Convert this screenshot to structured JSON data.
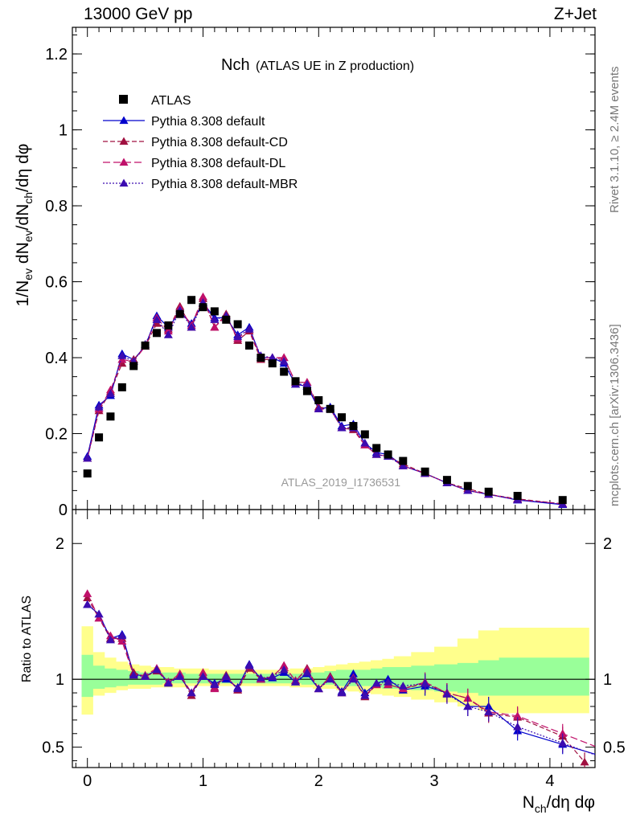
{
  "header": {
    "left": "13000 GeV pp",
    "right": "Z+Jet"
  },
  "side": {
    "rivet": "Rivet 3.1.10, ≥ 2.4M events",
    "mcplots": "mcplots.cern.ch [arXiv:1306.3436]"
  },
  "chart_data": [
    {
      "type": "scatter",
      "title": "Nch",
      "subtitle": "(ATLAS UE in Z production)",
      "watermark": "ATLAS_2019_I1736531",
      "ylabel": "1/N_ev dN_ev/dN_ch/dη dφ",
      "xlabel": "N_ch/dη dφ",
      "xlim": [
        -0.13,
        4.39
      ],
      "ylim": [
        0,
        1.27
      ],
      "yticks": [
        0,
        0.2,
        0.4,
        0.6,
        0.8,
        1,
        1.2
      ],
      "ytick_labels": [
        "0",
        "0.2",
        "0.4",
        "0.6",
        "0.8",
        "1",
        "1.2"
      ],
      "legend": [
        "ATLAS",
        "Pythia 8.308 default",
        "Pythia 8.308 default-CD",
        "Pythia 8.308 default-DL",
        "Pythia 8.308 default-MBR"
      ],
      "legend_position": "top-left",
      "colors": {
        "ATLAS": "#000000",
        "default": "#0000cc",
        "cd": "#a01040",
        "dl": "#c0106a",
        "mbr": "#3c0cb0"
      },
      "x": [
        0.0,
        0.1,
        0.2,
        0.3,
        0.4,
        0.5,
        0.6,
        0.7,
        0.8,
        0.9,
        1.0,
        1.1,
        1.2,
        1.3,
        1.4,
        1.5,
        1.6,
        1.7,
        1.8,
        1.9,
        2.0,
        2.1,
        2.2,
        2.3,
        2.4,
        2.5,
        2.6,
        2.73,
        2.92,
        3.11,
        3.29,
        3.47,
        3.72,
        4.11
      ],
      "series": [
        {
          "name": "ATLAS",
          "values": [
            0.095,
            0.19,
            0.245,
            0.322,
            0.378,
            0.432,
            0.465,
            0.485,
            0.515,
            0.552,
            0.533,
            0.522,
            0.5,
            0.488,
            0.432,
            0.4,
            0.385,
            0.363,
            0.338,
            0.312,
            0.288,
            0.265,
            0.243,
            0.22,
            0.198,
            0.162,
            0.145,
            0.128,
            0.1,
            0.078,
            0.062,
            0.047,
            0.036,
            0.025
          ]
        },
        {
          "name": "Pythia 8.308 default",
          "values": [
            0.14,
            0.275,
            0.3,
            0.41,
            0.395,
            0.43,
            0.51,
            0.48,
            0.52,
            0.49,
            0.545,
            0.505,
            0.505,
            0.46,
            0.48,
            0.4,
            0.4,
            0.385,
            0.33,
            0.325,
            0.265,
            0.27,
            0.22,
            0.225,
            0.175,
            0.15,
            0.145,
            0.115,
            0.095,
            0.07,
            0.05,
            0.04,
            0.025,
            0.013
          ]
        },
        {
          "name": "Pythia 8.308 default-CD",
          "values": [
            0.135,
            0.26,
            0.31,
            0.385,
            0.395,
            0.43,
            0.49,
            0.475,
            0.535,
            0.48,
            0.555,
            0.48,
            0.515,
            0.445,
            0.47,
            0.395,
            0.395,
            0.4,
            0.335,
            0.335,
            0.27,
            0.265,
            0.215,
            0.21,
            0.17,
            0.145,
            0.14,
            0.12,
            0.095,
            0.07,
            0.055,
            0.04,
            0.028,
            0.015
          ]
        },
        {
          "name": "Pythia 8.308 default-DL",
          "values": [
            0.135,
            0.265,
            0.315,
            0.395,
            0.39,
            0.43,
            0.505,
            0.47,
            0.53,
            0.485,
            0.56,
            0.48,
            0.51,
            0.45,
            0.475,
            0.4,
            0.4,
            0.4,
            0.335,
            0.335,
            0.265,
            0.265,
            0.215,
            0.215,
            0.17,
            0.145,
            0.14,
            0.115,
            0.095,
            0.07,
            0.05,
            0.04,
            0.026,
            0.015
          ]
        },
        {
          "name": "Pythia 8.308 default-MBR",
          "values": [
            0.135,
            0.27,
            0.305,
            0.405,
            0.39,
            0.435,
            0.5,
            0.46,
            0.525,
            0.48,
            0.545,
            0.5,
            0.51,
            0.455,
            0.475,
            0.405,
            0.4,
            0.39,
            0.33,
            0.33,
            0.265,
            0.265,
            0.215,
            0.215,
            0.175,
            0.145,
            0.14,
            0.115,
            0.095,
            0.07,
            0.05,
            0.04,
            0.026,
            0.014
          ]
        }
      ]
    },
    {
      "type": "line",
      "ylabel": "Ratio to ATLAS",
      "xlabel": "N_ch/dη dφ",
      "xlim": [
        -0.13,
        4.39
      ],
      "ylim": [
        0.35,
        2.25
      ],
      "yticks": [
        0.5,
        1,
        2
      ],
      "ytick_labels": [
        "0.5",
        "1",
        "2"
      ],
      "xticks": [
        0,
        1,
        2,
        3,
        4
      ],
      "xtick_labels": [
        "0",
        "1",
        "2",
        "3",
        "4"
      ],
      "reference_line": 1,
      "band_edges": [
        -0.05,
        0.05,
        0.15,
        0.25,
        0.35,
        0.45,
        0.55,
        0.65,
        0.75,
        0.85,
        0.95,
        1.05,
        1.15,
        1.25,
        1.35,
        1.45,
        1.55,
        1.65,
        1.75,
        1.85,
        1.95,
        2.05,
        2.15,
        2.25,
        2.35,
        2.45,
        2.55,
        2.65,
        2.8,
        3.0,
        3.2,
        3.38,
        3.56,
        3.88,
        4.34
      ],
      "band_inner": [
        [
          0.87,
          1.18
        ],
        [
          0.93,
          1.1
        ],
        [
          0.94,
          1.08
        ],
        [
          0.95,
          1.07
        ],
        [
          0.96,
          1.06
        ],
        [
          0.96,
          1.05
        ],
        [
          0.96,
          1.05
        ],
        [
          0.97,
          1.05
        ],
        [
          0.97,
          1.05
        ],
        [
          0.97,
          1.04
        ],
        [
          0.97,
          1.04
        ],
        [
          0.97,
          1.04
        ],
        [
          0.97,
          1.04
        ],
        [
          0.97,
          1.04
        ],
        [
          0.97,
          1.04
        ],
        [
          0.97,
          1.04
        ],
        [
          0.97,
          1.04
        ],
        [
          0.97,
          1.04
        ],
        [
          0.97,
          1.04
        ],
        [
          0.96,
          1.05
        ],
        [
          0.96,
          1.05
        ],
        [
          0.96,
          1.06
        ],
        [
          0.95,
          1.07
        ],
        [
          0.95,
          1.07
        ],
        [
          0.95,
          1.07
        ],
        [
          0.94,
          1.08
        ],
        [
          0.93,
          1.09
        ],
        [
          0.93,
          1.09
        ],
        [
          0.92,
          1.1
        ],
        [
          0.91,
          1.11
        ],
        [
          0.9,
          1.12
        ],
        [
          0.88,
          1.14
        ],
        [
          0.88,
          1.16
        ],
        [
          0.88,
          1.16
        ]
      ],
      "band_outer": [
        [
          0.74,
          1.39
        ],
        [
          0.88,
          1.2
        ],
        [
          0.9,
          1.16
        ],
        [
          0.92,
          1.13
        ],
        [
          0.93,
          1.11
        ],
        [
          0.93,
          1.1
        ],
        [
          0.94,
          1.09
        ],
        [
          0.94,
          1.09
        ],
        [
          0.94,
          1.08
        ],
        [
          0.95,
          1.08
        ],
        [
          0.95,
          1.08
        ],
        [
          0.95,
          1.07
        ],
        [
          0.95,
          1.07
        ],
        [
          0.95,
          1.07
        ],
        [
          0.95,
          1.07
        ],
        [
          0.95,
          1.07
        ],
        [
          0.95,
          1.07
        ],
        [
          0.95,
          1.07
        ],
        [
          0.94,
          1.08
        ],
        [
          0.94,
          1.08
        ],
        [
          0.93,
          1.09
        ],
        [
          0.93,
          1.1
        ],
        [
          0.92,
          1.11
        ],
        [
          0.91,
          1.12
        ],
        [
          0.9,
          1.13
        ],
        [
          0.89,
          1.14
        ],
        [
          0.88,
          1.15
        ],
        [
          0.87,
          1.17
        ],
        [
          0.85,
          1.2
        ],
        [
          0.83,
          1.24
        ],
        [
          0.8,
          1.3
        ],
        [
          0.77,
          1.36
        ],
        [
          0.75,
          1.38
        ],
        [
          0.75,
          1.38
        ]
      ],
      "x": [
        0.0,
        0.1,
        0.2,
        0.3,
        0.4,
        0.5,
        0.6,
        0.7,
        0.8,
        0.9,
        1.0,
        1.1,
        1.2,
        1.3,
        1.4,
        1.5,
        1.6,
        1.7,
        1.8,
        1.9,
        2.0,
        2.1,
        2.2,
        2.3,
        2.4,
        2.5,
        2.6,
        2.73,
        2.92,
        3.11,
        3.29,
        3.47,
        3.72,
        4.11
      ],
      "series": [
        {
          "name": "Pythia 8.308 default",
          "values": [
            1.55,
            1.48,
            1.3,
            1.33,
            1.04,
            1.02,
            1.07,
            0.98,
            1.02,
            0.9,
            1.02,
            0.97,
            1.0,
            0.94,
            1.11,
            1.0,
            1.01,
            1.05,
            0.98,
            1.04,
            0.93,
            1.02,
            0.91,
            1.04,
            0.9,
            0.97,
            1.0,
            0.92,
            0.95,
            0.9,
            0.8,
            0.8,
            0.62,
            0.52
          ]
        },
        {
          "name": "Pythia 8.308 default-CD",
          "values": [
            1.6,
            1.45,
            1.3,
            1.3,
            1.05,
            1.02,
            1.06,
            0.98,
            1.03,
            0.88,
            1.03,
            0.94,
            1.03,
            0.92,
            1.08,
            1.0,
            1.02,
            1.1,
            0.99,
            1.08,
            0.93,
            1.02,
            0.9,
            1.01,
            0.87,
            0.96,
            0.96,
            0.93,
            0.97,
            0.9,
            0.86,
            0.75,
            0.72,
            0.58
          ]
        },
        {
          "name": "Pythia 8.308 default-DL",
          "values": [
            1.63,
            1.45,
            1.32,
            1.28,
            1.03,
            1.03,
            1.08,
            0.98,
            1.04,
            0.9,
            1.05,
            0.93,
            1.02,
            0.93,
            1.1,
            1.0,
            1.02,
            1.1,
            0.99,
            1.07,
            0.93,
            1.01,
            0.9,
            1.01,
            0.88,
            0.96,
            0.96,
            0.93,
            0.98,
            0.9,
            0.86,
            0.76,
            0.73,
            0.6
          ]
        },
        {
          "name": "Pythia 8.308 default-MBR",
          "values": [
            1.55,
            1.48,
            1.29,
            1.32,
            1.03,
            1.02,
            1.07,
            0.97,
            1.02,
            0.9,
            1.02,
            0.96,
            1.02,
            0.93,
            1.1,
            1.01,
            1.02,
            1.07,
            0.98,
            1.05,
            0.93,
            1.0,
            0.9,
            1.0,
            0.88,
            0.97,
            0.98,
            0.95,
            0.97,
            0.89,
            0.8,
            0.76,
            0.65,
            0.53
          ]
        }
      ],
      "extra_point": {
        "series": "Pythia 8.308 default-CD",
        "x": 4.3,
        "value": 0.39
      }
    }
  ]
}
